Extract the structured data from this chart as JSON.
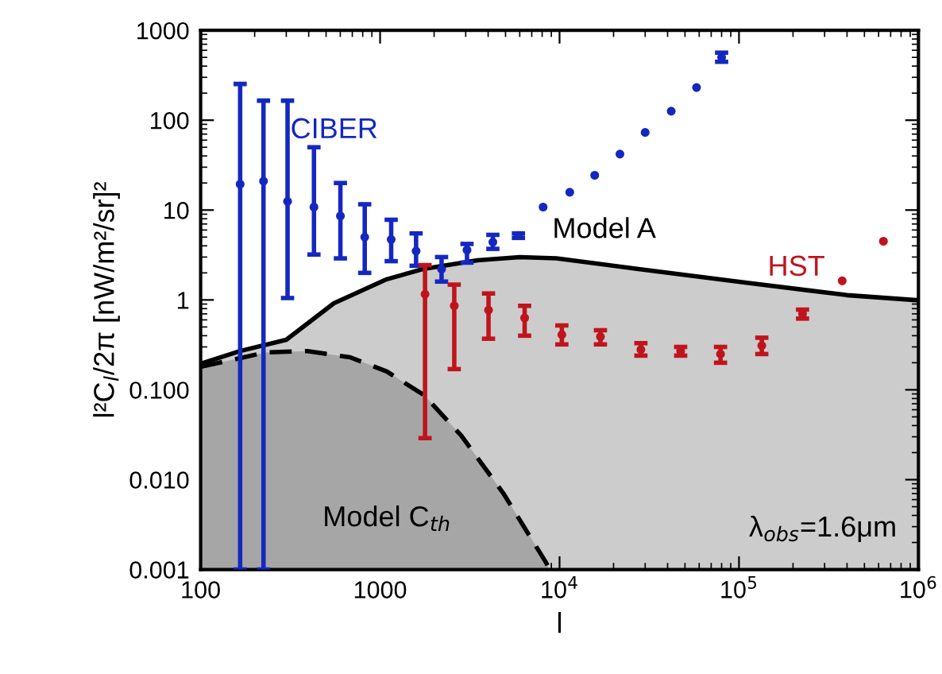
{
  "chart_data": {
    "type": "scatter",
    "xlabel": "l",
    "ylabel": "l²C$_{l}$/2π [nW/m²/sr]²",
    "log": "xy",
    "grid": false,
    "legend": false,
    "xlim": [
      100,
      1000000
    ],
    "xticks": [
      100,
      1000,
      {
        "value": 10000,
        "label": "10$^{4}$"
      },
      {
        "value": 100000,
        "label": "10$^{5}$"
      },
      {
        "value": 1000000,
        "label": "10$^{6}$"
      }
    ],
    "ylim": [
      0.001,
      1000
    ],
    "yticks": [
      {
        "value": 0.001,
        "label": "0.001"
      },
      {
        "value": 0.01,
        "label": "0.010"
      },
      {
        "value": 0.1,
        "label": "0.100"
      },
      1,
      10,
      100,
      1000
    ],
    "annotations": [
      "λ$_{obs}$=1.6μm"
    ],
    "series": [
      {
        "name": "Model A",
        "type": "area",
        "color": "#cccccc",
        "line_style": "solid",
        "marker": "none",
        "x": [
          100,
          166,
          300,
          553,
          1090,
          1760,
          3480,
          6000,
          9600,
          27000,
          104000,
          400000,
          1000000
        ],
        "values": [
          0.195,
          0.27,
          0.36,
          0.92,
          1.7,
          2.22,
          2.76,
          3.0,
          2.9,
          2.22,
          1.58,
          1.13,
          0.99
        ]
      },
      {
        "name": "Model C$_{th}$",
        "type": "area",
        "color": "#a6a6a6",
        "line_style": "dashed",
        "marker": "none",
        "x": [
          100,
          229,
          394,
          680,
          1090,
          1760,
          2830,
          4850,
          8400,
          8800
        ],
        "values": [
          0.18,
          0.26,
          0.27,
          0.23,
          0.16,
          0.087,
          0.031,
          0.0071,
          0.0012,
          0.001
        ]
      },
      {
        "name": "CIBER",
        "color": "#1428c0",
        "marker": "circle",
        "x": [
          166,
          224,
          305,
          428,
          601,
          821,
          1153,
          1587,
          2200,
          3050,
          4250,
          5900,
          8100,
          11400,
          15700,
          21700,
          30000,
          41900,
          58000,
          80000
        ],
        "values": [
          19.4,
          21,
          12.5,
          10.8,
          8.6,
          5.0,
          4.7,
          3.5,
          2.2,
          3.6,
          4.4,
          5.2,
          10.8,
          15.8,
          24.4,
          42,
          73,
          126,
          231,
          500
        ],
        "errors": [
          [
            0.001,
            253
          ],
          [
            0.001,
            165
          ],
          [
            1.05,
            165
          ],
          [
            3.2,
            50
          ],
          [
            2.9,
            20
          ],
          [
            2.0,
            11.6
          ],
          [
            2.7,
            7.8
          ],
          [
            2.4,
            5.5
          ],
          [
            1.6,
            3.0
          ],
          [
            2.6,
            4.2
          ],
          [
            3.7,
            5.3
          ],
          [
            4.9,
            5.5
          ],
          null,
          null,
          null,
          null,
          null,
          null,
          null,
          [
            447,
            565
          ]
        ]
      },
      {
        "name": "HST",
        "color": "#c0141c",
        "marker": "circle",
        "x": [
          1780,
          2590,
          4020,
          6390,
          10300,
          16900,
          28400,
          47300,
          78900,
          134000,
          226000,
          376000,
          638000
        ],
        "values": [
          1.16,
          0.86,
          0.77,
          0.63,
          0.41,
          0.39,
          0.28,
          0.27,
          0.25,
          0.31,
          0.7,
          1.63,
          4.5
        ],
        "errors": [
          [
            0.029,
            2.44
          ],
          [
            0.17,
            1.48
          ],
          [
            0.37,
            1.18
          ],
          [
            0.4,
            0.86
          ],
          [
            0.32,
            0.52
          ],
          [
            0.32,
            0.46
          ],
          [
            0.24,
            0.33
          ],
          [
            0.24,
            0.3
          ],
          [
            0.2,
            0.3
          ],
          [
            0.25,
            0.38
          ],
          [
            0.62,
            0.78
          ],
          null,
          null
        ]
      }
    ]
  }
}
